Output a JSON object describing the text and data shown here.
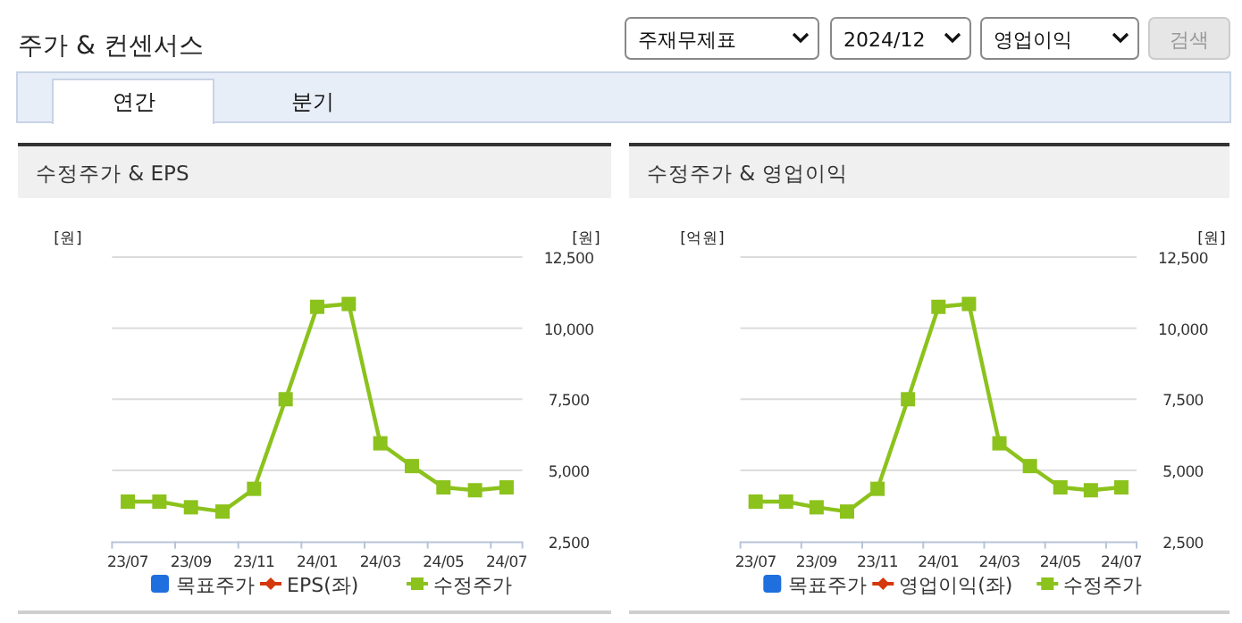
{
  "chart_data": [
    {
      "type": "line",
      "title": "수정주가 & EPS",
      "annotations": [
        "주가 & 컨센서스",
        "주재무제표",
        "2024/12",
        "영업이익",
        "검색",
        "연간",
        "분기"
      ],
      "categories": [
        "23/07",
        null,
        "23/09",
        null,
        "23/11",
        null,
        "24/01",
        null,
        "24/03",
        null,
        "24/05",
        null,
        "24/07"
      ],
      "ylabel": "[원]",
      "y2label": "[원]",
      "y2lim": [
        2500,
        12500
      ],
      "y2ticks": [
        {
          "value": 2500,
          "label": "2,500"
        },
        {
          "value": 5000,
          "label": "5,000"
        },
        {
          "value": 7500,
          "label": "7,500"
        },
        {
          "value": 10000,
          "label": "10,000"
        },
        {
          "value": 12500,
          "label": "12,500"
        }
      ],
      "grid": "y",
      "legend": "bottom",
      "series": [
        {
          "name": "목표주가",
          "type": "bar",
          "color": "#1f6fde",
          "values": [
            null,
            null,
            null,
            null,
            null,
            null,
            null,
            null,
            null,
            null,
            null,
            null,
            null
          ]
        },
        {
          "name": "EPS(좌)",
          "marker": "diamond",
          "color": "#d4380d",
          "values": [
            null,
            null,
            null,
            null,
            null,
            null,
            null,
            null,
            null,
            null,
            null,
            null,
            null
          ]
        },
        {
          "name": "수정주가",
          "marker": "square",
          "axis": "y2",
          "color": "#8cc21c",
          "values": [
            3900,
            3900,
            3700,
            3550,
            4350,
            7500,
            10750,
            10850,
            5950,
            5150,
            4400,
            4300,
            4400
          ]
        }
      ]
    },
    {
      "type": "line",
      "title": "수정주가 & 영업이익",
      "categories": [
        "23/07",
        null,
        "23/09",
        null,
        "23/11",
        null,
        "24/01",
        null,
        "24/03",
        null,
        "24/05",
        null,
        "24/07"
      ],
      "ylabel": "[억원]",
      "y2label": "[원]",
      "y2lim": [
        2500,
        12500
      ],
      "y2ticks": [
        {
          "value": 2500,
          "label": "2,500"
        },
        {
          "value": 5000,
          "label": "5,000"
        },
        {
          "value": 7500,
          "label": "7,500"
        },
        {
          "value": 10000,
          "label": "10,000"
        },
        {
          "value": 12500,
          "label": "12,500"
        }
      ],
      "grid": "y",
      "legend": "bottom",
      "series": [
        {
          "name": "목표주가",
          "type": "bar",
          "color": "#1f6fde",
          "values": [
            null,
            null,
            null,
            null,
            null,
            null,
            null,
            null,
            null,
            null,
            null,
            null,
            null
          ]
        },
        {
          "name": "영업이익(좌)",
          "marker": "diamond",
          "color": "#d4380d",
          "values": [
            null,
            null,
            null,
            null,
            null,
            null,
            null,
            null,
            null,
            null,
            null,
            null,
            null
          ]
        },
        {
          "name": "수정주가",
          "marker": "square",
          "axis": "y2",
          "color": "#8cc21c",
          "values": [
            3900,
            3900,
            3700,
            3550,
            4350,
            7500,
            10750,
            10850,
            5950,
            5150,
            4400,
            4300,
            4400
          ]
        }
      ]
    }
  ]
}
